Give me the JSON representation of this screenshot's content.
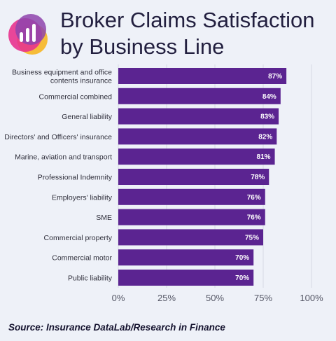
{
  "title": "Broker Claims Satisfaction by Business Line",
  "logo": {
    "icon": "bar-chart-icon",
    "colors": [
      "#e8338e",
      "#f5b82e",
      "#8e44ad"
    ]
  },
  "source": "Source: Insurance DataLab/Research in Finance",
  "colors": {
    "bar": "#5b2491",
    "grid": "#d6d9e3",
    "background": "#eef1f8"
  },
  "chart_data": {
    "type": "bar",
    "orientation": "horizontal",
    "categories": [
      "Business equipment and office contents insurance",
      "Commercial combined",
      "General liability",
      "Directors' and Officers' insurance",
      "Marine, aviation and transport",
      "Professional Indemnity",
      "Employers' liability",
      "SME",
      "Commercial property",
      "Commercial motor",
      "Public liability"
    ],
    "category_lines": [
      [
        "Business equipment and office",
        "contents insurance"
      ],
      [
        "Commercial combined"
      ],
      [
        "General liability"
      ],
      [
        "Directors' and Officers' insurance"
      ],
      [
        "Marine, aviation and transport"
      ],
      [
        "Professional Indemnity"
      ],
      [
        "Employers' liability"
      ],
      [
        "SME"
      ],
      [
        "Commercial property"
      ],
      [
        "Commercial motor"
      ],
      [
        "Public liability"
      ]
    ],
    "values": [
      87,
      84,
      83,
      82,
      81,
      78,
      76,
      76,
      75,
      70,
      70
    ],
    "value_labels": [
      "87%",
      "84%",
      "83%",
      "82%",
      "81%",
      "78%",
      "76%",
      "76%",
      "75%",
      "70%",
      "70%"
    ],
    "xlim": [
      0,
      100
    ],
    "xticks": [
      0,
      25,
      50,
      75,
      100
    ],
    "xtick_labels": [
      "0%",
      "25%",
      "50%",
      "75%",
      "100%"
    ],
    "grid": true,
    "legend": "none"
  }
}
